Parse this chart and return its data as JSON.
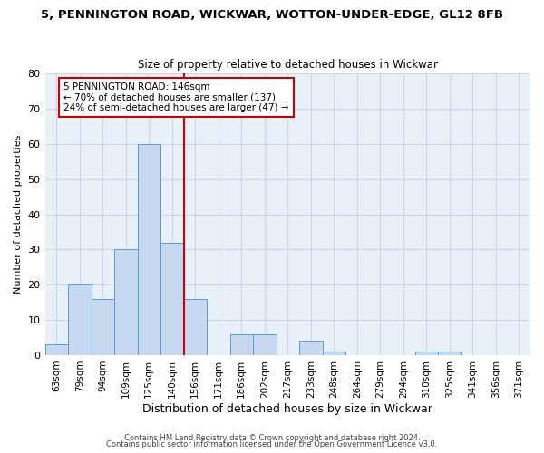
{
  "title": "5, PENNINGTON ROAD, WICKWAR, WOTTON-UNDER-EDGE, GL12 8FB",
  "subtitle": "Size of property relative to detached houses in Wickwar",
  "xlabel": "Distribution of detached houses by size in Wickwar",
  "ylabel": "Number of detached properties",
  "bar_labels": [
    "63sqm",
    "79sqm",
    "94sqm",
    "109sqm",
    "125sqm",
    "140sqm",
    "156sqm",
    "171sqm",
    "186sqm",
    "202sqm",
    "217sqm",
    "233sqm",
    "248sqm",
    "264sqm",
    "279sqm",
    "294sqm",
    "310sqm",
    "325sqm",
    "341sqm",
    "356sqm",
    "371sqm"
  ],
  "bar_values": [
    3,
    20,
    16,
    30,
    60,
    32,
    16,
    0,
    6,
    6,
    0,
    4,
    1,
    0,
    0,
    0,
    1,
    1,
    0,
    0,
    0
  ],
  "bar_color": "#c6d9f0",
  "bar_edge_color": "#5b9bd5",
  "vline_color": "#cc0000",
  "vline_pos": 5.5,
  "annotation_line1": "5 PENNINGTON ROAD: 146sqm",
  "annotation_line2": "← 70% of detached houses are smaller (137)",
  "annotation_line3": "24% of semi-detached houses are larger (47) →",
  "annotation_box_color": "#ffffff",
  "annotation_box_edge": "#cc0000",
  "ylim": [
    0,
    80
  ],
  "yticks": [
    0,
    10,
    20,
    30,
    40,
    50,
    60,
    70,
    80
  ],
  "footer1": "Contains HM Land Registry data © Crown copyright and database right 2024.",
  "footer2": "Contains public sector information licensed under the Open Government Licence v3.0.",
  "background_color": "#ffffff",
  "grid_color": "#c8d8e8"
}
